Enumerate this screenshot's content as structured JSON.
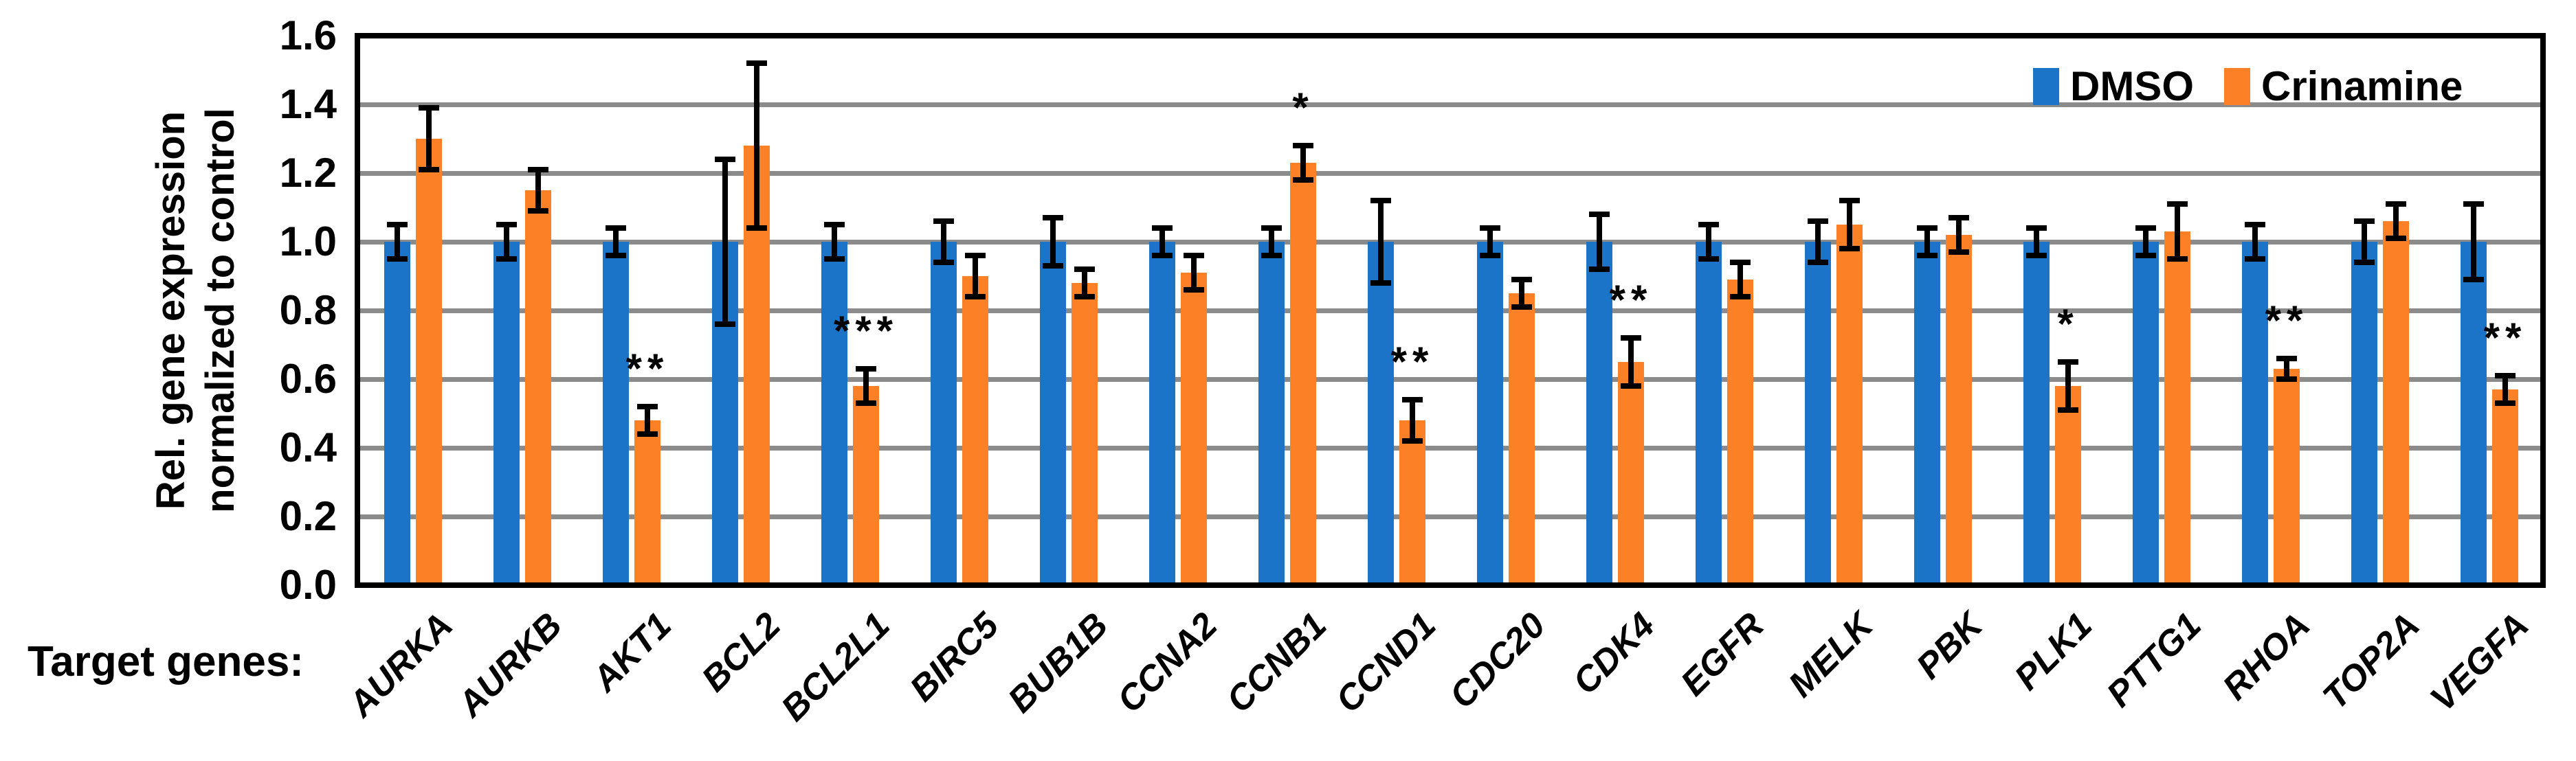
{
  "figure": {
    "y_axis": {
      "title_line1": "Rel. gene expression",
      "title_line2": "normalized to control",
      "ticks": [
        "0.0",
        "0.2",
        "0.4",
        "0.6",
        "0.8",
        "1.0",
        "1.2",
        "1.4",
        "1.6"
      ]
    },
    "x_axis": {
      "caption": "Target genes:"
    },
    "colors": {
      "dmso": "#1B74C8",
      "crinamine": "#FC8126",
      "gridline": "#8B8B8B",
      "frame": "#000000"
    }
  },
  "chart_data": {
    "type": "bar",
    "title": "",
    "xlabel": "Target genes:",
    "ylabel": "Rel. gene expression normalized to control",
    "ylim": [
      0,
      1.6
    ],
    "ytick_step": 0.2,
    "grid": true,
    "legend_position": "top-right",
    "categories": [
      "AURKA",
      "AURKB",
      "AKT1",
      "BCL2",
      "BCL2L1",
      "BIRC5",
      "BUB1B",
      "CCNA2",
      "CCNB1",
      "CCND1",
      "CDC20",
      "CDK4",
      "EGFR",
      "MELK",
      "PBK",
      "PLK1",
      "PTTG1",
      "RHOA",
      "TOP2A",
      "VEGFA"
    ],
    "series": [
      {
        "name": "DMSO",
        "color": "#1B74C8",
        "values": [
          1.0,
          1.0,
          1.0,
          1.0,
          1.0,
          1.0,
          1.0,
          1.0,
          1.0,
          1.0,
          1.0,
          1.0,
          1.0,
          1.0,
          1.0,
          1.0,
          1.0,
          1.0,
          1.0,
          1.0
        ],
        "errors": [
          0.05,
          0.05,
          0.04,
          0.24,
          0.05,
          0.06,
          0.07,
          0.04,
          0.04,
          0.12,
          0.04,
          0.08,
          0.05,
          0.06,
          0.04,
          0.04,
          0.04,
          0.05,
          0.06,
          0.11
        ],
        "significance": [
          "",
          "",
          "",
          "",
          "",
          "",
          "",
          "",
          "",
          "",
          "",
          "",
          "",
          "",
          "",
          "",
          "",
          "",
          "",
          ""
        ]
      },
      {
        "name": "Crinamine",
        "color": "#FC8126",
        "values": [
          1.3,
          1.15,
          0.48,
          1.28,
          0.58,
          0.9,
          0.88,
          0.91,
          1.23,
          0.48,
          0.85,
          0.65,
          0.89,
          1.05,
          1.02,
          0.58,
          1.03,
          0.63,
          1.06,
          0.57
        ],
        "errors": [
          0.09,
          0.06,
          0.04,
          0.24,
          0.05,
          0.06,
          0.04,
          0.05,
          0.05,
          0.06,
          0.04,
          0.07,
          0.05,
          0.07,
          0.05,
          0.07,
          0.08,
          0.03,
          0.05,
          0.04
        ],
        "significance": [
          "",
          "",
          "**",
          "",
          "***",
          "",
          "",
          "",
          "*",
          "**",
          "",
          "**",
          "",
          "",
          "",
          "*",
          "",
          "**",
          "",
          "**"
        ]
      }
    ]
  }
}
